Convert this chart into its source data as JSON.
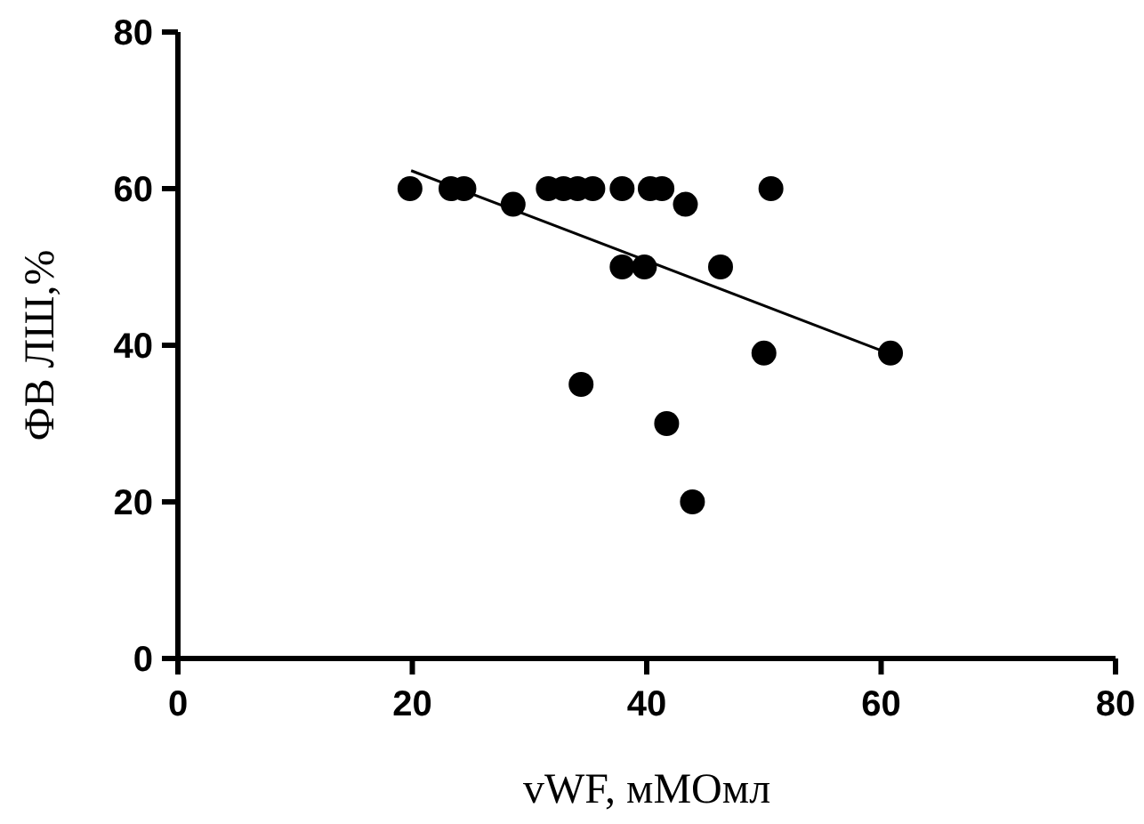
{
  "chart_data": {
    "type": "scatter",
    "xlabel": "vWF, мМОмл",
    "ylabel": "ФВ ЛШ,%",
    "xlim": [
      0,
      80
    ],
    "ylim": [
      0,
      80
    ],
    "xticks": [
      0,
      20,
      40,
      60,
      80
    ],
    "yticks": [
      0,
      20,
      40,
      60,
      80
    ],
    "grid": false,
    "marker": "circle",
    "series": [
      {
        "color": "#000000",
        "x": [
          19.8,
          23.3,
          24.4,
          31.6,
          32.9,
          34.1,
          35.4,
          37.9,
          40.3,
          41.3,
          50.6,
          28.6,
          43.3,
          37.9,
          39.8,
          46.3,
          50,
          60.8,
          34.4,
          41.7,
          43.9
        ],
        "values": [
          60,
          60,
          60,
          60,
          60,
          60,
          60,
          60,
          60,
          60,
          60,
          58,
          58,
          50,
          50,
          50,
          39,
          39,
          35,
          30,
          20
        ]
      },
      {
        "type": "line",
        "color": "#000000",
        "marker": "none",
        "x": [
          19.9,
          59.9
        ],
        "values": [
          62.3,
          39.4
        ]
      }
    ]
  }
}
